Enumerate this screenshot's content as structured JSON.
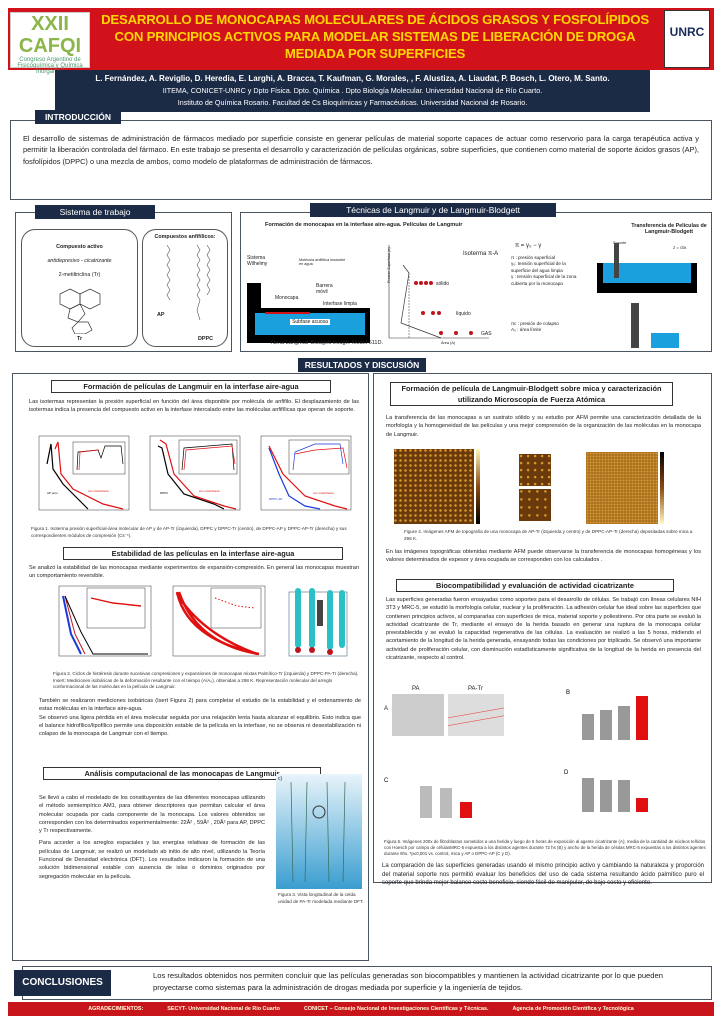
{
  "header": {
    "title": "DESARROLLO DE MONOCAPAS MOLECULARES DE ÁCIDOS GRASOS Y FOSFOLÍPIDOS CON PRINCIPIOS ACTIVOS PARA MODELAR SISTEMAS DE LIBERACIÓN DE DROGA MEDIADA POR SUPERFICIES",
    "logo_left": "XXII CAFQI Virtual - Congreso Argentino de Fisicoquímica y Química Inorgánica - La Plata 2021",
    "logo_right": "UNRC",
    "accent": "#d2121a",
    "title_color": "#ffd700",
    "navy": "#1c2b45"
  },
  "authors": {
    "names": "L. Fernández, A. Reviglio, D. Heredia,  E. Larghi, A. Bracca, T. Kaufman, G. Morales, , F. Alustiza, A. Liaudat, P. Bosch, L. Otero,  M. Santo.",
    "affil1": "IITEMA, CONICET-UNRC y Dpto Física. Dpto. Química . Dpto Biología Molecular. Universidad Nacional de Río Cuarto.",
    "affil2": "Instituto de Química Rosario. Facultad de Cs Bioquímicas y Farmacéuticas. Universidad Nacional de Rosario."
  },
  "intro": {
    "tab": "INTRODUCCIÓN",
    "text": "El desarrollo de sistemas de administración de fármacos mediado por superficie consiste en generar películas de material soporte capaces de actuar como reservorio para la carga terapéutica activa y permitir la liberación controlada del fármaco. En este trabajo se presenta el desarrollo y caracterización de películas orgánicas, sobre superficies, que contienen como material de soporte ácidos grasos (AP), fosfolípidos (DPPC) o una mezcla de ambos, como modelo de plataformas de administración de fármacos."
  },
  "sistema": {
    "tab": "Sistema de trabajo",
    "active_title": "Compuesto activo",
    "active_desc": "antidepresivo - cicatrizante",
    "active_name": "2-metiltriclina (Tr)",
    "tr": "Tr",
    "amph_title": "Compuestos anfifílicos:",
    "ap": "AP",
    "dppc": "DPPC"
  },
  "tecnicas": {
    "tab": "Técnicas de Langmuir y de  Langmuir-Blodgett",
    "subtitle": "Formación de monocapas  en la interfase aire-agua.  Películas de Langmuir",
    "wilhelmy": "Sistema Wilhelmy",
    "molecula": "Molécula anfifílica insoluble en agua",
    "barrera": "Barrera móvil",
    "monocapa": "Monocapa",
    "interfase": "Interfase limpia",
    "subfase": "Subfase acuosa",
    "trough": "Nima Langmuir-Blodgett trough.  Model 611D.",
    "isoterma": "Isoterma π-A",
    "eq": "π = γ₀ − γ",
    "pi_def": "π : presión superficial",
    "g0_def": "γ₀: tensión superficial de la superficie del agua limpia",
    "g_def": "γ : tensión superficial de la zona cubierta por la monocapa",
    "solido": "sólido",
    "liquido": "líquido",
    "gas": "GAS",
    "pic_def": "πc : presión de colapso",
    "a0_def": "A₀ : área límite",
    "yaxis": "Presión Superficial (π)",
    "xaxis": "Área (A)",
    "transfer_title": "Transferencia de Películas de Langmuir-Blodgett",
    "soporte": "Soporte",
    "cte": "z = cte."
  },
  "resultados": {
    "tab": "RESULTADOS Y DISCUSIÓN"
  },
  "left": {
    "s1_title": "Formación de películas de Langmuir en la interfase aire-agua",
    "s1_text": "Las isotermas representan la presión superficial en función del área disponible por molécula de anfifilo. El desplazamiento de las isotermas indica la presencia del compuesto activo en la interfase intercalado entre las moléculas anfifílicas que operan de soporte.",
    "fig1_caption": "Figura 1. Isoterma presión superficial-área molecular de AP y de AP-Tr (izquierda), DPPC y DPPC-Tr (centro), de DPPC-AP y DPPC-AP-Tr (derecha) y sus correspondientes módulos de compresión (Cs⁻¹).",
    "fig1_labels": [
      "AP puro",
      "con cicatrizante",
      "DPPC",
      "con cicatrizante",
      "DPPC-AP",
      "con cicatrizante"
    ],
    "s2_title": "Estabilidad de las películas en la interfase aire-agua",
    "s2_text": "Se analizó la estabilidad de las monocapas mediante experimentos de expansión-compresión. En general las monocapas muestran un comportamiento reversible.",
    "fig2_caption": "Figura 2. Ciclos de histéresis durante sucesivas compresiones y expansiones de monocapas mixtas Palmítico-Tr (izquierda) y DPPC-PA-Tr (derecha). Insert: Mediciones isobáricas de la deformación resultante  con el tiempo (A/A₀), obtenidas a 298 K. Representación molecular del arreglo conformacional de las moléculas en la película de Langmuir.",
    "s2_text2": "También se realizaron mediciones isobáricas (Isert Figura 2) para completar el estudio de la estabilidad y el ordenamiento de estas moléculas en la interface aire-agua.",
    "s2_text3": "Se observó una ligera pérdida en el área molecular seguida por una relajación lenta hasta alcanzar el equilibrio. Esto indica que el balance  hidrofílico/lipofílico permite una disposición estable  de la película en la interfase, no se observa ni desestabilización ni colapso de la monocapa de Langmuir con el tiempo.",
    "s3_title": "Análisis computacional de las monocapas de Langmuir",
    "s3_text1": "Se llevó a cabo el modelado de los constituyentes de las diferentes monocapas utilizando el método semiempírico AM1, para obtener descriptores que permitan calcular el área molecular ocupada por cada componente de la monocapa. Los valores obtenidos se corresponden con los determinados experimentalmente: 22Å² , 59Å² , 20Å²  para AP, DPPC y Tr respectivamente.",
    "s3_text2": "Para acceder a los arreglos espaciales y las energías relativas de formación de las películas de Langmuir, se realizó un modelado ab initio de alto nivel, utilizando la Teoría Funcional de Densidad electrónica (DFT). Los resultados indicaron la formación de una solución bidimensional estable con ausencia de islas o dominios originados por segregación molecular en la película.",
    "fig3_label": "c)",
    "fig3_caption": "Figura 3. Vista longitudinal de la celda unidad de PA-Tr modelada  mediante DFT."
  },
  "right": {
    "s1_title": "Formación de película de Langmuir-Blodgett  sobre mica y caracterización utilizando Microscopía de Fuerza Atómica",
    "s1_text": "La transferencia de las monocapas a un sustrato sólido y su estudio por AFM permite una caracterización detallada de la morfología y la homogeneidad de las películas y una mejor comprensión de la organización de las moléculas en la monocapa de Langmuir.",
    "fig4_caption": "Figure 4. Imágenes AFM de topografía de una monocapa de AP-Tr (izquierda y centro) y de DPPC-AP-Tr (derecha) depositadas sobre mica a 298 K.",
    "s1_text2": "En las imágenes topográficas obtenidas mediante AFM puede observarse la transferencia de monocapas homogéneas y los valores determinados de espesor y área ocupada se corresponden con los calculados .",
    "s2_title": "Biocompatibilidad y evaluación de actividad cicatrizante",
    "s2_text": "Las superficies generadas fueron ensayadas como soportes para el desarrollo de células. Se trabajó con líneas celulares NIH 3T3 y MRC-5, se estudió la morfología celular, nuclear y la proliferación. La adhesión celular fue ideal sobre las superficies que contienen principios activos, al compararlas con superficies de mica, material soporte y poliestireno. Por otra parte se evaluó la actividad cicatrizante de Tr, mediante el ensayo de la herida basado en generar una ruptura de la monocapa celular preestablecida y se evaluó la capacidad regenerativa de las células. La evaluación se realizó a las 5 horas, midiendo el acortamiento de la longitud de la herida generada, ensayando todas las condiciones por triplicado. Se observó una importante actividad de proliferación celular, con disminución estadísticamente significativa de la longitud de la herida en presencia del cicatrizante, respecto al control.",
    "fig5_labels": {
      "pa": "PA",
      "patr": "PA-Tr",
      "a": "A",
      "b": "B",
      "c": "C",
      "d": "D"
    },
    "fig5_caption": "Figura 5. Imágenes 200x de fibroblastos sometidos a una herida y luego de 5 horas de exposición al agente cicatrizante (A); media de la cantidad de núcleos teñidos con Hoesch por campo de célulasMRC-5 expuesta a los distintos agentes durante 72 hs (B) y  ancho de la herida de células MRC-5 expuestas a los distintos agentes durante  5hs. *p≤0,001 vs. control, mica y AP o DPPC-AP (C y D).",
    "s2_text2": "La comparación de las superficies generadas usando el mismo principio activo y cambiando la naturaleza y proporción del material soporte nos permitió evaluar los beneficios del uso de cada sistema resultando ácido palmítico puro el soporte que brinda mejor balance costo beneficio, siendo fácil de manipular, de bajo costo y eficiente."
  },
  "conclusiones": {
    "tab": "CONCLUSIONES",
    "text": "Los resultados  obtenidos nos permiten concluir que las películas generadas son biocompatibles y mantienen la actividad cicatrizante por lo que pueden proyectarse como sistemas para la administración de drogas mediada por superficie y la ingeniería de tejidos."
  },
  "footer": {
    "label": "AGRADECIMIENTOS:",
    "items": [
      "SECYT- Universidad Nacional de Río Cuarto",
      "CONICET – Consejo Nacional de Investigaciones Científicas y Técnicas.",
      "Agencia de Promoción Científica y Tecnológica"
    ]
  }
}
